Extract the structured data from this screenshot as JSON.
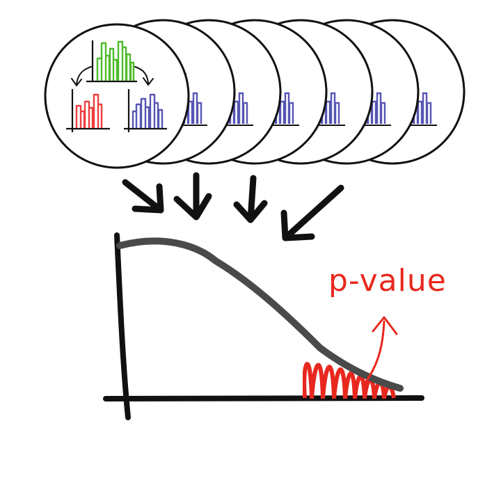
{
  "diagram": {
    "annotation": "p-value",
    "resample_circle_count": 7,
    "colors": {
      "original_sample": "#4cbb2a",
      "group_a": "#ee3d3d",
      "group_b": "#5555b4",
      "curve": "#4a4a4a",
      "axes": "#111111",
      "arrows": "#111111",
      "p_value": "#e8281e"
    }
  }
}
